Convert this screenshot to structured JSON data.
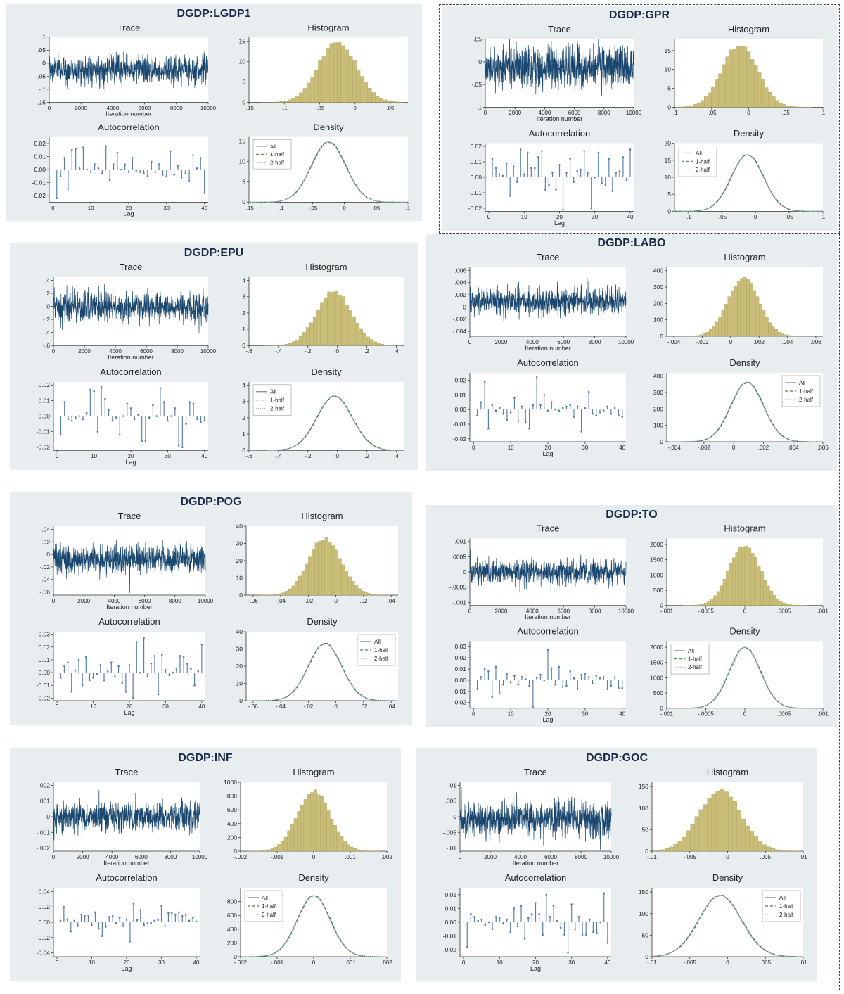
{
  "colors": {
    "panel_bg": "#e8eef0",
    "plot_bg": "#ffffff",
    "trace": "#1a476f",
    "hist_bar": "#c9bd78",
    "hist_edge": "#a39a5c",
    "acf": "#5a7fa6",
    "dens_all": "#6e7fa3",
    "dens_half1": "#3f8a3f",
    "dens_half2": "#b8b8b8",
    "title": "#1a2a4a",
    "axis": "#333333",
    "border": "#444444"
  },
  "labels": {
    "trace": "Trace",
    "histogram": "Histogram",
    "autocorrelation": "Autocorrelation",
    "density": "Density",
    "iteration_number": "Iteration number",
    "lag": "Lag",
    "legend": [
      "All",
      "1-half",
      "2-half"
    ]
  },
  "chart_data": [
    {
      "title": "DGDP:LGDP1",
      "type": "mcmc-diagnostics",
      "mean": -0.025,
      "sd": 0.027,
      "trace": {
        "type": "line",
        "xlabel": "Iteration number",
        "xticks": [
          0,
          2000,
          4000,
          6000,
          8000,
          10000
        ],
        "ylim": [
          -0.15,
          0.1
        ],
        "yticks": [
          -0.15,
          -0.1,
          -0.05,
          0,
          0.05,
          0.1
        ]
      },
      "histogram": {
        "type": "bar",
        "xlim": [
          -0.15,
          0.075
        ],
        "xticks": [
          -0.15,
          -0.1,
          -0.05,
          0,
          0.05
        ],
        "ymax": 16,
        "yticks": [
          0,
          5,
          10,
          15
        ]
      },
      "acf": {
        "type": "bar",
        "xlabel": "Lag",
        "xticks": [
          0,
          10,
          20,
          30,
          40
        ],
        "ylim": [
          -0.025,
          0.025
        ],
        "yticks": [
          -0.02,
          -0.01,
          0,
          0.01,
          0.02
        ],
        "decimals": 2,
        "values": [
          -0.022,
          -0.005,
          0.009,
          -0.015,
          0.015,
          0.016,
          0.001,
          0.017,
          0.0,
          -0.002,
          0.004,
          0.001,
          -0.003,
          0.018,
          -0.008,
          0.004,
          0.013,
          0.0,
          0.004,
          -0.002,
          0.009,
          -0.001,
          -0.002,
          -0.003,
          -0.005,
          0.006,
          -0.002,
          0.004,
          -0.004,
          -0.005,
          0.014,
          -0.004,
          0.003,
          -0.006,
          -0.003,
          -0.009,
          0.011,
          0.001,
          0.009,
          -0.018
        ]
      },
      "density": {
        "type": "line",
        "xlim": [
          -0.15,
          0.1
        ],
        "xticks": [
          -0.15,
          -0.1,
          -0.05,
          0,
          0.05,
          0.1
        ],
        "ymax": 16,
        "yticks": [
          0,
          5,
          10,
          15
        ],
        "legend": "top-left"
      }
    },
    {
      "title": "DGDP:GPR",
      "type": "mcmc-diagnostics",
      "mean": -0.012,
      "sd": 0.024,
      "trace": {
        "type": "line",
        "xlabel": "Iteration number",
        "xticks": [
          0,
          2000,
          4000,
          6000,
          8000,
          10000
        ],
        "ylim": [
          -0.1,
          0.05
        ],
        "yticks": [
          -0.1,
          -0.05,
          0,
          0.05
        ]
      },
      "histogram": {
        "type": "bar",
        "xlim": [
          -0.1,
          0.1
        ],
        "xticks": [
          -0.1,
          -0.05,
          0,
          0.05,
          0.1
        ],
        "ymax": 18,
        "yticks": [
          0,
          5,
          10,
          15
        ]
      },
      "acf": {
        "type": "bar",
        "xlabel": "Lag",
        "xticks": [
          0,
          10,
          20,
          30,
          40
        ],
        "ylim": [
          -0.022,
          0.022
        ],
        "yticks": [
          -0.02,
          -0.01,
          0,
          0.01,
          0.02
        ],
        "decimals": 2,
        "values": [
          0.012,
          0.006,
          0.002,
          0.001,
          0.009,
          -0.012,
          0.007,
          -0.003,
          0.018,
          0.002,
          0.016,
          0.006,
          0.006,
          0.013,
          0.017,
          -0.008,
          -0.005,
          0.003,
          -0.008,
          0.008,
          -0.021,
          0.003,
          0.012,
          -0.003,
          0.004,
          0.005,
          0.017,
          0.003,
          -0.02,
          0.0,
          0.016,
          -0.004,
          -0.005,
          0.012,
          -0.009,
          0.003,
          0.004,
          0.013,
          -0.002,
          0.018
        ]
      },
      "density": {
        "type": "line",
        "xlim": [
          -0.12,
          0.1
        ],
        "xticks": [
          -0.1,
          -0.05,
          0,
          0.05,
          0.1
        ],
        "ymax": 20,
        "yticks": [
          0,
          5,
          10,
          15,
          20
        ],
        "legend": "top-left"
      }
    },
    {
      "title": "DGDP:EPU",
      "type": "mcmc-diagnostics",
      "mean": -0.02,
      "sd": 0.12,
      "trace": {
        "type": "line",
        "xlabel": "Iteration number",
        "xticks": [
          0,
          2000,
          4000,
          6000,
          8000,
          10000
        ],
        "ylim": [
          -0.6,
          0.45
        ],
        "yticks": [
          -0.6,
          -0.4,
          -0.2,
          0,
          0.2,
          0.4
        ]
      },
      "histogram": {
        "type": "bar",
        "xlim": [
          -0.6,
          0.45
        ],
        "xticks": [
          -0.6,
          -0.4,
          -0.2,
          0,
          0.2,
          0.4
        ],
        "ymax": 4.2,
        "yticks": [
          0,
          1,
          2,
          3,
          4
        ]
      },
      "acf": {
        "type": "bar",
        "xlabel": "Lag",
        "xticks": [
          0,
          10,
          20,
          30,
          40
        ],
        "ylim": [
          -0.022,
          0.022
        ],
        "yticks": [
          -0.02,
          -0.01,
          0,
          0.01,
          0.02
        ],
        "decimals": 2,
        "values": [
          -0.012,
          0.009,
          -0.002,
          -0.003,
          -0.001,
          0.0,
          -0.002,
          0.002,
          0.017,
          0.016,
          -0.01,
          0.019,
          0.011,
          0.004,
          -0.003,
          -0.001,
          -0.012,
          0.0,
          0.008,
          0.005,
          -0.002,
          0.001,
          -0.016,
          -0.016,
          -0.001,
          0.007,
          0.0,
          0.018,
          0.009,
          -0.003,
          0.0,
          0.005,
          -0.019,
          -0.02,
          -0.005,
          0.009,
          0.008,
          -0.002,
          -0.004,
          -0.003
        ]
      },
      "density": {
        "type": "line",
        "xlim": [
          -0.6,
          0.45
        ],
        "xticks": [
          -0.6,
          -0.4,
          -0.2,
          0,
          0.2,
          0.4
        ],
        "ymax": 4.2,
        "yticks": [
          0,
          1,
          2,
          3,
          4
        ],
        "legend": "top-left"
      }
    },
    {
      "title": "DGDP:LABO",
      "type": "mcmc-diagnostics",
      "mean": 0.0009,
      "sd": 0.0011,
      "trace": {
        "type": "line",
        "xlabel": "Iteration number",
        "xticks": [
          0,
          2000,
          4000,
          6000,
          8000,
          10000
        ],
        "ylim": [
          -0.0048,
          0.0065
        ],
        "yticks": [
          -0.004,
          -0.002,
          0,
          0.002,
          0.004,
          0.006
        ]
      },
      "histogram": {
        "type": "bar",
        "xlim": [
          -0.0045,
          0.0065
        ],
        "xticks": [
          -0.004,
          -0.002,
          0,
          0.002,
          0.004,
          0.006
        ],
        "ymax": 420,
        "yticks": [
          0,
          100,
          200,
          300,
          400
        ]
      },
      "acf": {
        "type": "bar",
        "xlabel": "Lag",
        "xticks": [
          0,
          10,
          20,
          30,
          40
        ],
        "ylim": [
          -0.022,
          0.025
        ],
        "yticks": [
          -0.02,
          -0.01,
          0,
          0.01,
          0.02
        ],
        "decimals": 2,
        "values": [
          -0.004,
          0.005,
          0.019,
          -0.013,
          0.003,
          -0.001,
          0.001,
          -0.003,
          -0.007,
          -0.002,
          0.008,
          -0.008,
          0.002,
          -0.009,
          -0.013,
          0.003,
          0.022,
          0.003,
          0.01,
          -0.001,
          0.005,
          0.0,
          -0.001,
          0.001,
          0.002,
          0.003,
          -0.005,
          0.002,
          -0.015,
          0.001,
          0.012,
          -0.003,
          -0.004,
          -0.002,
          -0.001,
          0.002,
          -0.003,
          0.001,
          -0.004,
          -0.005
        ]
      },
      "density": {
        "type": "line",
        "xlim": [
          -0.0045,
          0.006
        ],
        "xticks": [
          -0.004,
          -0.002,
          0,
          0.002,
          0.004,
          0.006
        ],
        "ymax": 420,
        "yticks": [
          0,
          100,
          200,
          300,
          400
        ],
        "legend": "top-right"
      }
    },
    {
      "title": "DGDP:POG",
      "type": "mcmc-diagnostics",
      "mean": -0.008,
      "sd": 0.012,
      "trace": {
        "type": "line",
        "xlabel": "Iteration number",
        "xticks": [
          0,
          2000,
          4000,
          6000,
          8000,
          10000
        ],
        "ylim": [
          -0.065,
          0.045
        ],
        "yticks": [
          -0.06,
          -0.04,
          -0.02,
          0,
          0.02,
          0.04
        ]
      },
      "histogram": {
        "type": "bar",
        "xlim": [
          -0.065,
          0.045
        ],
        "xticks": [
          -0.06,
          -0.04,
          -0.02,
          0,
          0.02,
          0.04
        ],
        "ymax": 40,
        "yticks": [
          0,
          10,
          20,
          30,
          40
        ]
      },
      "acf": {
        "type": "bar",
        "xlabel": "Lag",
        "xticks": [
          0,
          10,
          20,
          30,
          40
        ],
        "ylim": [
          -0.022,
          0.032
        ],
        "yticks": [
          -0.02,
          -0.01,
          0,
          0.01,
          0.02,
          0.03
        ],
        "decimals": 2,
        "values": [
          -0.004,
          0.005,
          0.008,
          -0.015,
          0.002,
          0.01,
          -0.01,
          0.012,
          -0.006,
          -0.004,
          -0.001,
          0.006,
          -0.006,
          0.001,
          0.008,
          -0.003,
          0.005,
          -0.008,
          -0.015,
          0.006,
          -0.02,
          0.024,
          0.0,
          0.027,
          -0.003,
          0.007,
          0.013,
          -0.017,
          0.014,
          0.002,
          -0.002,
          0.0,
          0.003,
          0.013,
          0.012,
          0.007,
          0.003,
          -0.01,
          0.001,
          0.022
        ]
      },
      "density": {
        "type": "line",
        "xlim": [
          -0.065,
          0.045
        ],
        "xticks": [
          -0.06,
          -0.04,
          -0.02,
          0,
          0.02,
          0.04
        ],
        "ymax": 40,
        "yticks": [
          0,
          10,
          20,
          30,
          40
        ],
        "legend": "top-right"
      }
    },
    {
      "title": "DGDP:TO",
      "type": "mcmc-diagnostics",
      "mean": 0.0,
      "sd": 0.0002,
      "trace": {
        "type": "line",
        "xlabel": "Iteration number",
        "xticks": [
          0,
          2000,
          4000,
          6000,
          8000,
          10000
        ],
        "ylim": [
          -0.0011,
          0.0011
        ],
        "yticks": [
          -0.001,
          -0.0005,
          0,
          0.0005,
          0.001
        ]
      },
      "histogram": {
        "type": "bar",
        "xlim": [
          -0.001,
          0.001
        ],
        "xticks": [
          -0.001,
          -0.0005,
          0,
          0.0005,
          0.001
        ],
        "ymax": 2200,
        "yticks": [
          0,
          500,
          1000,
          1500,
          2000
        ]
      },
      "acf": {
        "type": "bar",
        "xlabel": "Lag",
        "xticks": [
          0,
          10,
          20,
          30,
          40
        ],
        "ylim": [
          -0.025,
          0.035
        ],
        "yticks": [
          -0.02,
          -0.01,
          0,
          0.01,
          0.02,
          0.03
        ],
        "decimals": 2,
        "values": [
          -0.008,
          0.003,
          0.01,
          0.008,
          -0.015,
          0.012,
          -0.012,
          -0.004,
          0.006,
          -0.002,
          0.004,
          -0.004,
          0.003,
          0.001,
          -0.005,
          -0.024,
          0.002,
          0.005,
          0.0,
          0.027,
          0.011,
          -0.004,
          0.012,
          -0.006,
          -0.005,
          0.008,
          0.002,
          -0.008,
          0.005,
          0.006,
          0.003,
          -0.003,
          0.004,
          0.002,
          0.003,
          -0.008,
          -0.005,
          0.003,
          -0.007,
          -0.007
        ]
      },
      "density": {
        "type": "line",
        "xlim": [
          -0.001,
          0.001
        ],
        "xticks": [
          -0.001,
          -0.0005,
          0,
          0.0005,
          0.001
        ],
        "ymax": 2200,
        "yticks": [
          0,
          500,
          1000,
          1500,
          2000
        ],
        "legend": "top-left"
      }
    },
    {
      "title": "DGDP:INF",
      "type": "mcmc-diagnostics",
      "mean": 0.0,
      "sd": 0.00045,
      "trace": {
        "type": "line",
        "xlabel": "Iteration number",
        "xticks": [
          0,
          2000,
          4000,
          6000,
          8000,
          10000
        ],
        "ylim": [
          -0.0022,
          0.0022
        ],
        "yticks": [
          -0.002,
          -0.001,
          0,
          0.001,
          0.002
        ]
      },
      "histogram": {
        "type": "bar",
        "xlim": [
          -0.002,
          0.002
        ],
        "xticks": [
          -0.002,
          -0.001,
          0,
          0.001,
          0.002
        ],
        "ymax": 1000,
        "yticks": [
          0,
          200,
          400,
          600,
          800,
          1000
        ]
      },
      "acf": {
        "type": "bar",
        "xlabel": "Lag",
        "xticks": [
          0,
          10,
          20,
          30,
          40
        ],
        "ylim": [
          -0.045,
          0.045
        ],
        "yticks": [
          -0.04,
          -0.02,
          0.0,
          0.02,
          0.04
        ],
        "decimals": 2,
        "values": [
          0.002,
          0.02,
          0.004,
          -0.012,
          0.002,
          -0.005,
          0.01,
          0.008,
          0.009,
          -0.004,
          0.013,
          -0.008,
          -0.018,
          -0.006,
          0.007,
          0.008,
          -0.001,
          0.006,
          -0.005,
          0.004,
          -0.025,
          0.024,
          0.003,
          0.016,
          -0.004,
          -0.002,
          -0.001,
          0.002,
          0.003,
          0.021,
          -0.005,
          0.012,
          0.012,
          0.01,
          0.013,
          0.008,
          0.01,
          0.002,
          0.006,
          0.001
        ]
      },
      "density": {
        "type": "line",
        "xlim": [
          -0.002,
          0.002
        ],
        "xticks": [
          -0.002,
          -0.001,
          0,
          0.001,
          0.002
        ],
        "ymax": 1000,
        "yticks": [
          0,
          200,
          400,
          600,
          800
        ],
        "legend": "top-left"
      }
    },
    {
      "title": "DGDP:GOC",
      "type": "mcmc-diagnostics",
      "mean": -0.001,
      "sd": 0.0028,
      "trace": {
        "type": "line",
        "xlabel": "Iteration number",
        "xticks": [
          0,
          2000,
          4000,
          6000,
          8000,
          10000
        ],
        "ylim": [
          -0.011,
          0.011
        ],
        "yticks": [
          -0.01,
          -0.005,
          0,
          0.005,
          0.01
        ]
      },
      "histogram": {
        "type": "bar",
        "xlim": [
          -0.01,
          0.01
        ],
        "xticks": [
          -0.01,
          -0.005,
          0,
          0.005,
          0.01
        ],
        "ymax": 160,
        "yticks": [
          0,
          50,
          100,
          150
        ]
      },
      "acf": {
        "type": "bar",
        "xlabel": "Lag",
        "xticks": [
          0,
          10,
          20,
          30,
          40
        ],
        "ylim": [
          -0.025,
          0.025
        ],
        "yticks": [
          -0.02,
          -0.01,
          0,
          0.01,
          0.02
        ],
        "decimals": 2,
        "values": [
          -0.018,
          0.006,
          0.004,
          0.001,
          0.002,
          -0.002,
          0.0,
          -0.005,
          0.004,
          0.003,
          -0.001,
          0.002,
          -0.007,
          0.01,
          -0.003,
          0.012,
          -0.012,
          0.003,
          0.006,
          0.014,
          0.006,
          -0.009,
          0.02,
          0.004,
          0.012,
          0.001,
          -0.004,
          -0.009,
          -0.022,
          0.013,
          -0.005,
          0.004,
          -0.009,
          -0.009,
          0.002,
          -0.007,
          -0.008,
          0.0,
          0.021,
          -0.015
        ]
      },
      "density": {
        "type": "line",
        "xlim": [
          -0.01,
          0.01
        ],
        "xticks": [
          -0.01,
          -0.005,
          0,
          0.005,
          0.01
        ],
        "ymax": 160,
        "yticks": [
          0,
          50,
          100,
          150
        ],
        "legend": "top-right"
      }
    }
  ]
}
